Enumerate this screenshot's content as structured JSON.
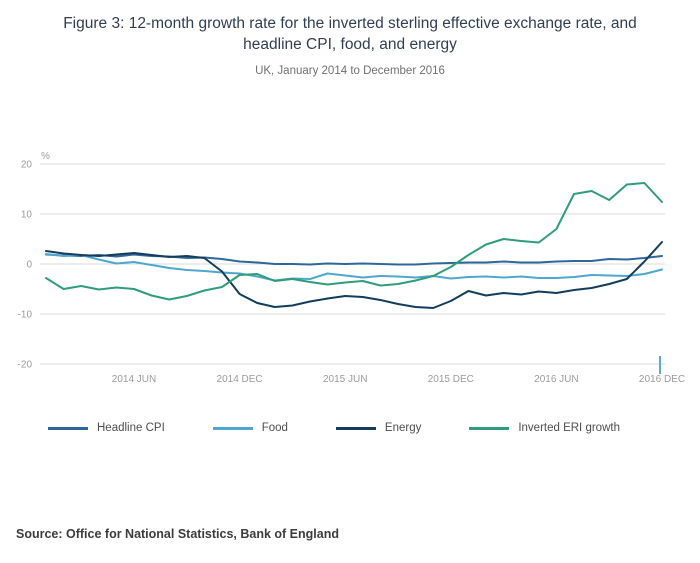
{
  "source": "Source: Office for National Statistics, Bank of England",
  "chart_data": {
    "type": "line",
    "title": "Figure 3: 12-month growth rate for the inverted sterling effective exchange rate, and headline CPI, food, and energy",
    "subtitle": "UK, January 2014 to December 2016",
    "unit_label": "%",
    "x_start": "January 2014",
    "x_end": "December 2016",
    "x_frequency": "monthly",
    "x_tick_labels": [
      "2014 JUN",
      "2014 DEC",
      "2015 JUN",
      "2015 DEC",
      "2016 JUN",
      "2016 DEC"
    ],
    "x_tick_month_indices": [
      5,
      11,
      17,
      23,
      29,
      35
    ],
    "y_ticks": [
      20,
      10,
      0,
      -10,
      -20
    ],
    "ylim": [
      -20,
      20
    ],
    "grid": "horizontal",
    "legend_position": "bottom",
    "gridline_color": "#d9d9d9",
    "axis_label_color": "#9b9b9b",
    "end_tick_color": "#5fa8d0",
    "series": [
      {
        "name": "Headline CPI",
        "color": "#30679b",
        "values": [
          1.9,
          1.7,
          1.6,
          1.8,
          1.5,
          1.9,
          1.6,
          1.5,
          1.2,
          1.3,
          1.0,
          0.5,
          0.3,
          0.0,
          0.0,
          -0.1,
          0.1,
          0.0,
          0.1,
          0.0,
          -0.1,
          -0.1,
          0.1,
          0.2,
          0.3,
          0.3,
          0.5,
          0.3,
          0.3,
          0.5,
          0.6,
          0.6,
          1.0,
          0.9,
          1.2,
          1.6
        ]
      },
      {
        "name": "Food",
        "color": "#4da7cf",
        "values": [
          2.0,
          1.6,
          1.8,
          0.9,
          0.1,
          0.4,
          -0.2,
          -0.8,
          -1.2,
          -1.4,
          -1.7,
          -1.9,
          -2.5,
          -3.3,
          -2.9,
          -3.0,
          -1.9,
          -2.3,
          -2.7,
          -2.4,
          -2.5,
          -2.7,
          -2.4,
          -2.9,
          -2.6,
          -2.5,
          -2.7,
          -2.5,
          -2.8,
          -2.8,
          -2.6,
          -2.2,
          -2.3,
          -2.4,
          -2.0,
          -1.1
        ]
      },
      {
        "name": "Energy",
        "color": "#123d5c",
        "values": [
          2.6,
          2.1,
          1.8,
          1.6,
          1.9,
          2.2,
          1.8,
          1.4,
          1.6,
          1.2,
          -1.5,
          -6.0,
          -7.8,
          -8.6,
          -8.3,
          -7.5,
          -6.9,
          -6.4,
          -6.6,
          -7.2,
          -8.0,
          -8.6,
          -8.8,
          -7.4,
          -5.4,
          -6.3,
          -5.8,
          -6.1,
          -5.5,
          -5.8,
          -5.2,
          -4.8,
          -4.0,
          -3.0,
          0.5,
          4.4
        ]
      },
      {
        "name": "Inverted ERI growth",
        "color": "#2f9e77",
        "values": [
          -2.8,
          -5.0,
          -4.4,
          -5.1,
          -4.7,
          -5.0,
          -6.3,
          -7.1,
          -6.4,
          -5.3,
          -4.6,
          -2.2,
          -2.0,
          -3.4,
          -3.0,
          -3.6,
          -4.1,
          -3.7,
          -3.4,
          -4.3,
          -4.0,
          -3.3,
          -2.4,
          -0.6,
          1.8,
          3.9,
          5.0,
          4.6,
          4.3,
          7.0,
          14.0,
          14.6,
          12.8,
          15.9,
          16.2,
          12.4
        ]
      }
    ]
  }
}
